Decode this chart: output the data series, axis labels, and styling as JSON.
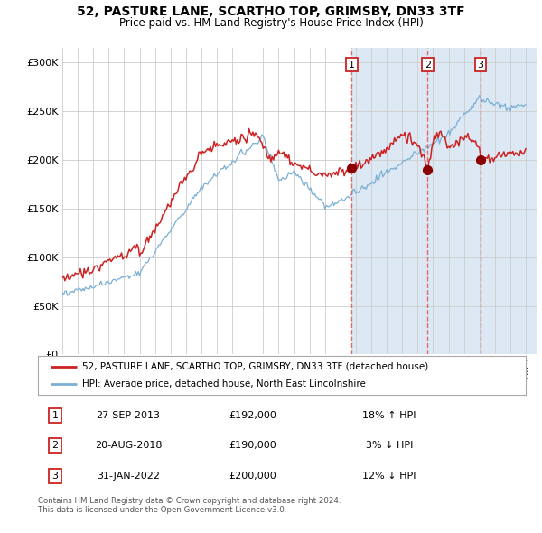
{
  "title": "52, PASTURE LANE, SCARTHO TOP, GRIMSBY, DN33 3TF",
  "subtitle": "Price paid vs. HM Land Registry's House Price Index (HPI)",
  "legend_line1": "52, PASTURE LANE, SCARTHO TOP, GRIMSBY, DN33 3TF (detached house)",
  "legend_line2": "HPI: Average price, detached house, North East Lincolnshire",
  "transactions": [
    {
      "num": 1,
      "date": "27-SEP-2013",
      "price": 192000,
      "hpi_pct": "18% ↑ HPI",
      "date_float": 2013.74
    },
    {
      "num": 2,
      "date": "20-AUG-2018",
      "price": 190000,
      "hpi_pct": "3% ↓ HPI",
      "date_float": 2018.64
    },
    {
      "num": 3,
      "date": "31-JAN-2022",
      "price": 200000,
      "hpi_pct": "12% ↓ HPI",
      "date_float": 2022.08
    }
  ],
  "hpi_color": "#7bafd4",
  "price_color": "#cc2222",
  "dot_color": "#8b0000",
  "shade_color": "#dce9f5",
  "vline_color": "#e05555",
  "grid_color": "#cccccc",
  "background_color": "#ffffff",
  "yticks": [
    0,
    50000,
    100000,
    150000,
    200000,
    250000,
    300000
  ],
  "ylim": [
    0,
    315000
  ],
  "xlim_start": 1995.0,
  "xlim_end": 2025.7,
  "footer": "Contains HM Land Registry data © Crown copyright and database right 2024.\nThis data is licensed under the Open Government Licence v3.0."
}
